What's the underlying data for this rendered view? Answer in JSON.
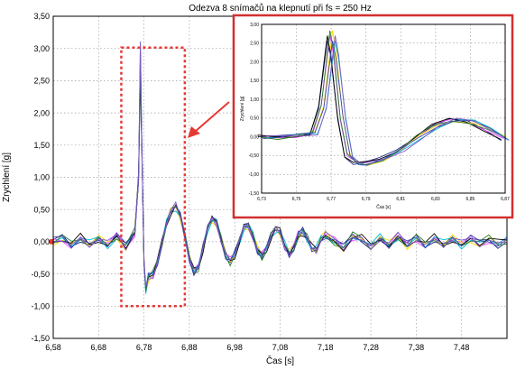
{
  "chart_data": [
    {
      "type": "line",
      "title": "Odezva 8 snímačů na klepnutí při fs = 250 Hz",
      "xlabel": "Čas [s]",
      "ylabel": "Zrychlení [g]",
      "xlim": [
        6.58,
        7.58
      ],
      "ylim": [
        -1.5,
        3.5
      ],
      "xticks": [
        "6,58",
        "6,68",
        "6,78",
        "6,88",
        "6,98",
        "7,08",
        "7,18",
        "7,28",
        "7,38",
        "7,48"
      ],
      "yticks": [
        "-1,50",
        "-1,00",
        "-0,50",
        "0,00",
        "0,50",
        "1,00",
        "1,50",
        "2,00",
        "2,50",
        "3,00",
        "3,50"
      ],
      "grid": true,
      "series_colors": [
        "#1a237e",
        "#e040fb",
        "#ffd600",
        "#00bcd4",
        "#000000",
        "#2e7d32",
        "#3949ab",
        "#7e57c2"
      ],
      "highlight": {
        "x_range": [
          6.73,
          6.87
        ],
        "y_range": [
          -1.0,
          3.0
        ]
      },
      "series": [
        {
          "x": [
            6.58,
            6.6,
            6.62,
            6.64,
            6.66,
            6.68,
            6.7,
            6.72,
            6.74,
            6.76,
            6.768,
            6.772,
            6.776,
            6.78,
            6.784,
            6.79,
            6.8,
            6.81,
            6.82,
            6.83,
            6.84,
            6.85,
            6.86,
            6.87,
            6.88,
            6.89,
            6.9,
            6.91,
            6.92,
            6.93,
            6.94,
            6.95,
            6.96,
            6.97,
            6.98,
            6.99,
            7.0,
            7.01,
            7.02,
            7.03,
            7.04,
            7.05,
            7.06,
            7.07,
            7.08,
            7.09,
            7.1,
            7.11,
            7.12,
            7.13,
            7.14,
            7.15,
            7.16,
            7.17,
            7.18,
            7.2,
            7.22,
            7.24,
            7.26,
            7.28,
            7.3,
            7.32,
            7.34,
            7.36,
            7.38,
            7.4,
            7.42,
            7.44,
            7.46,
            7.48,
            7.5,
            7.52,
            7.54,
            7.56,
            7.58
          ],
          "values": [
            0.0,
            0.05,
            -0.05,
            0.06,
            -0.04,
            0.05,
            -0.05,
            0.08,
            -0.08,
            0.15,
            1.0,
            2.85,
            1.2,
            -0.3,
            -0.75,
            -0.55,
            -0.5,
            -0.3,
            0.0,
            0.3,
            0.48,
            0.55,
            0.4,
            0.1,
            -0.25,
            -0.45,
            -0.4,
            -0.1,
            0.2,
            0.35,
            0.3,
            0.05,
            -0.2,
            -0.3,
            -0.2,
            0.0,
            0.22,
            0.25,
            0.1,
            -0.12,
            -0.22,
            -0.12,
            0.08,
            0.2,
            0.15,
            -0.05,
            -0.18,
            -0.1,
            0.1,
            0.15,
            0.05,
            -0.1,
            -0.12,
            0.05,
            0.1,
            0.0,
            -0.1,
            0.08,
            0.05,
            -0.08,
            0.06,
            -0.05,
            0.08,
            -0.06,
            0.05,
            -0.05,
            0.06,
            -0.04,
            0.05,
            -0.05,
            0.04,
            -0.03,
            0.04,
            -0.03,
            0.02
          ]
        }
      ]
    },
    {
      "type": "line",
      "xlabel": "Čas [s]",
      "ylabel": "Zrychlení [g]",
      "xlim": [
        6.73,
        6.87
      ],
      "ylim": [
        -1.5,
        3.0
      ],
      "xticks": [
        "6,73",
        "6,75",
        "6,77",
        "6,79",
        "6,81",
        "6,83",
        "6,85",
        "6,87"
      ],
      "yticks": [
        "-1,50",
        "-1,00",
        "-0,50",
        "0,00",
        "0,50",
        "1,00",
        "1,50",
        "2,00",
        "2,50",
        "3,00"
      ],
      "grid": true,
      "series": [
        {
          "x": [
            6.73,
            6.74,
            6.75,
            6.76,
            6.765,
            6.77,
            6.772,
            6.776,
            6.78,
            6.785,
            6.79,
            6.8,
            6.81,
            6.82,
            6.83,
            6.84,
            6.85,
            6.86,
            6.87
          ],
          "values": [
            0.0,
            -0.02,
            0.03,
            0.1,
            0.8,
            2.7,
            2.2,
            0.5,
            -0.5,
            -0.7,
            -0.72,
            -0.6,
            -0.35,
            0.0,
            0.3,
            0.45,
            0.4,
            0.2,
            -0.05
          ]
        }
      ]
    }
  ]
}
